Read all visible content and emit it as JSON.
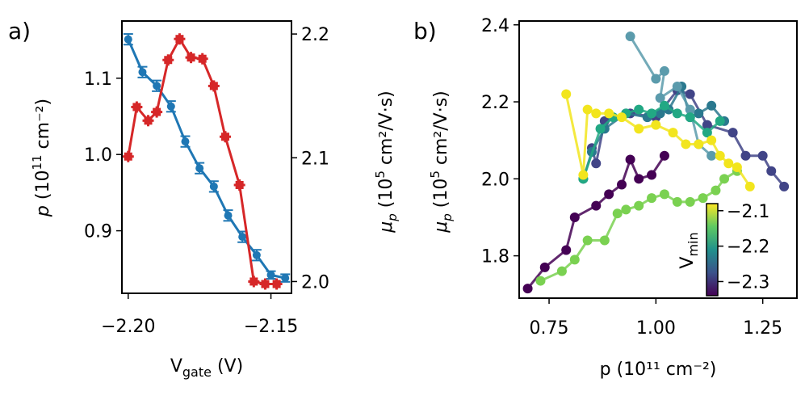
{
  "chart_data": [
    {
      "panel_label": "a)",
      "type": "line",
      "xlabel": "V",
      "xlabel_sub": "gate",
      "xlabel_unit": " (V)",
      "xlim": [
        -2.2022,
        -2.1428
      ],
      "xticks": [
        -2.2,
        -2.15
      ],
      "xtick_labels": [
        "−2.20",
        "−2.15"
      ],
      "ylabel_left": "p (10¹¹ cm⁻²)",
      "ylim_left": [
        0.818,
        1.175
      ],
      "yticks_left": [
        0.9,
        1.0,
        1.1
      ],
      "ytick_labels_left": [
        "0.9",
        "1.0",
        "1.1"
      ],
      "ylabel_right": "μp (10⁵ cm²/V·s)",
      "ylim_right": [
        1.9905,
        2.2105
      ],
      "yticks_right": [
        2.0,
        2.1,
        2.2
      ],
      "ytick_labels_right": [
        "2.0",
        "2.1",
        "2.2"
      ],
      "series": [
        {
          "name": "p",
          "axis": "left",
          "color": "#1f77b4",
          "marker": "circle",
          "x": [
            -2.2,
            -2.195,
            -2.19,
            -2.185,
            -2.18,
            -2.175,
            -2.17,
            -2.165,
            -2.16,
            -2.155,
            -2.15,
            -2.145
          ],
          "y": [
            1.151,
            1.108,
            1.09,
            1.063,
            1.017,
            0.982,
            0.958,
            0.92,
            0.892,
            0.868,
            0.842,
            0.838
          ],
          "err": [
            0.007,
            0.007,
            0.007,
            0.007,
            0.007,
            0.007,
            0.007,
            0.007,
            0.007,
            0.007,
            0.005,
            0.005
          ]
        },
        {
          "name": "μp",
          "axis": "right",
          "color": "#d62728",
          "marker": "plus",
          "x": [
            -2.2,
            -2.197,
            -2.193,
            -2.19,
            -2.186,
            -2.182,
            -2.178,
            -2.174,
            -2.17,
            -2.166,
            -2.161,
            -2.156,
            -2.152,
            -2.148
          ],
          "y": [
            2.101,
            2.141,
            2.13,
            2.137,
            2.179,
            2.196,
            2.181,
            2.18,
            2.158,
            2.117,
            2.078,
            2.0,
            1.998,
            1.998
          ]
        }
      ]
    },
    {
      "panel_label": "b)",
      "type": "line",
      "xlabel": "p (10¹¹ cm⁻²)",
      "xlim": [
        0.68,
        1.33
      ],
      "xticks": [
        0.75,
        1.0,
        1.25
      ],
      "xtick_labels": [
        "0.75",
        "1.00",
        "1.25"
      ],
      "ylabel": "μp (10⁵ cm²/V·s)",
      "ylim": [
        1.69,
        2.41
      ],
      "yticks": [
        1.8,
        2.0,
        2.2,
        2.4
      ],
      "ytick_labels": [
        "1.8",
        "2.0",
        "2.2",
        "2.4"
      ],
      "colorbar": {
        "label": "V",
        "label_sub": "min",
        "range": [
          -2.34,
          -2.08
        ],
        "ticks": [
          -2.1,
          -2.2,
          -2.3
        ],
        "tick_labels": [
          "−2.1",
          "−2.2",
          "−2.3"
        ],
        "colormap": [
          "#440154",
          "#3b528b",
          "#21918c",
          "#5ec962",
          "#fde725"
        ]
      },
      "series": [
        {
          "name": "Vmin −2.34",
          "color": "#440154",
          "x": [
            0.7,
            0.74,
            0.79,
            0.81,
            0.86,
            0.89,
            0.92,
            0.94,
            0.96,
            0.99,
            1.02
          ],
          "y": [
            1.715,
            1.77,
            1.815,
            1.9,
            1.93,
            1.96,
            1.985,
            2.05,
            2.0,
            2.01,
            2.06
          ]
        },
        {
          "name": "Vmin −2.30",
          "color": "#414487",
          "x": [
            0.85,
            0.86,
            0.88,
            0.94,
            1.0,
            1.05,
            1.08,
            1.12,
            1.18,
            1.21,
            1.25,
            1.27,
            1.3
          ],
          "y": [
            2.08,
            2.04,
            2.15,
            2.17,
            2.16,
            2.23,
            2.22,
            2.14,
            2.12,
            2.06,
            2.06,
            2.02,
            1.98
          ]
        },
        {
          "name": "Vmin −2.25",
          "color": "#2a788e",
          "x": [
            0.83,
            0.85,
            0.88,
            0.93,
            0.98,
            1.01,
            1.03,
            1.06,
            1.08,
            1.1,
            1.13,
            1.16
          ],
          "y": [
            2.0,
            2.07,
            2.13,
            2.17,
            2.16,
            2.17,
            2.18,
            2.24,
            2.16,
            2.17,
            2.19,
            2.15
          ]
        },
        {
          "name": "Vmin −2.20",
          "color": "#5b9bac",
          "x": [
            0.94,
            1.0,
            1.02,
            1.01,
            1.05,
            1.08,
            1.1,
            1.13
          ],
          "y": [
            2.37,
            2.26,
            2.28,
            2.21,
            2.24,
            2.18,
            2.09,
            2.06
          ]
        },
        {
          "name": "Vmin −2.15",
          "color": "#22a884",
          "x": [
            0.83,
            0.87,
            0.9,
            0.93,
            0.96,
            0.99,
            1.02,
            1.05,
            1.08,
            1.12,
            1.15
          ],
          "y": [
            2.0,
            2.13,
            2.16,
            2.17,
            2.18,
            2.17,
            2.19,
            2.17,
            2.16,
            2.12,
            2.15
          ]
        },
        {
          "name": "Vmin −2.12",
          "color": "#7ad151",
          "x": [
            0.73,
            0.78,
            0.81,
            0.84,
            0.88,
            0.91,
            0.93,
            0.96,
            0.99,
            1.02,
            1.05,
            1.08,
            1.11,
            1.14,
            1.16,
            1.19
          ],
          "y": [
            1.735,
            1.76,
            1.79,
            1.84,
            1.84,
            1.91,
            1.92,
            1.93,
            1.95,
            1.96,
            1.94,
            1.94,
            1.95,
            1.97,
            2.0,
            2.02
          ]
        },
        {
          "name": "Vmin −2.09",
          "color": "#f2e51d",
          "x": [
            0.79,
            0.83,
            0.84,
            0.86,
            0.89,
            0.92,
            0.96,
            1.0,
            1.04,
            1.07,
            1.1,
            1.13,
            1.15,
            1.17,
            1.19,
            1.22
          ],
          "y": [
            2.22,
            2.01,
            2.18,
            2.17,
            2.17,
            2.16,
            2.13,
            2.14,
            2.12,
            2.09,
            2.09,
            2.1,
            2.06,
            2.04,
            2.03,
            1.98
          ]
        }
      ]
    }
  ]
}
